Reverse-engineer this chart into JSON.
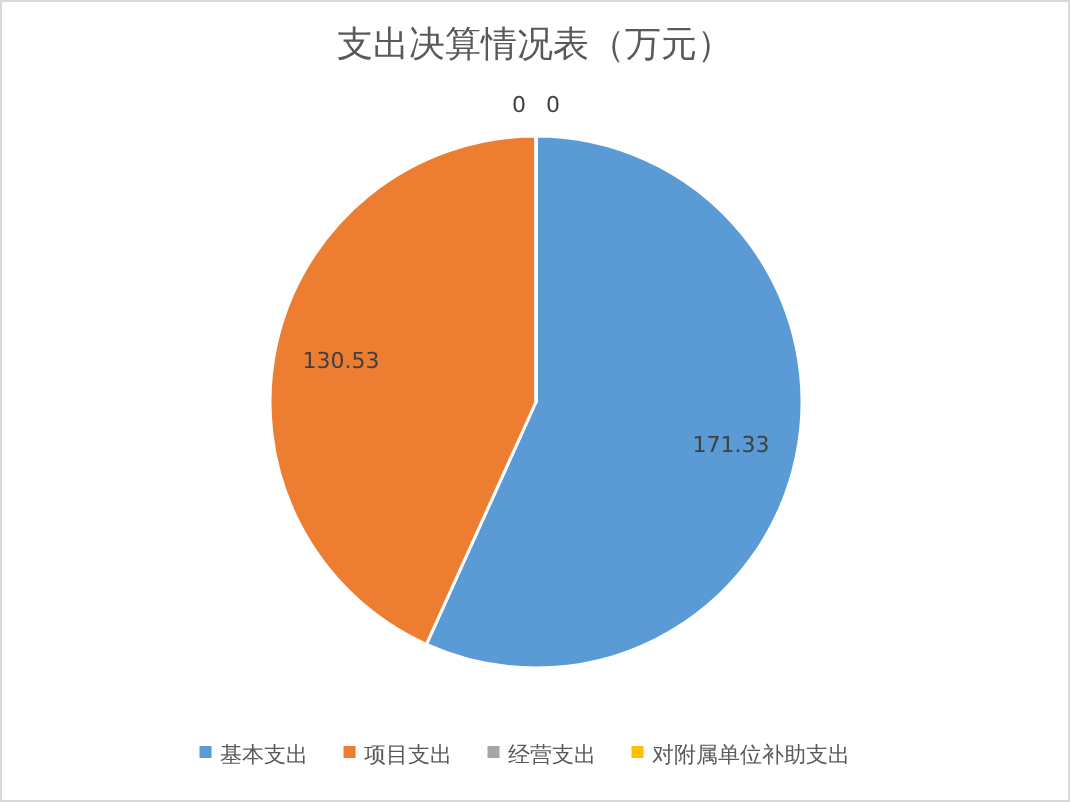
{
  "chart_data": {
    "type": "pie",
    "title": "支出决算情况表（万元）",
    "categories": [
      "基本支出",
      "项目支出",
      "经营支出",
      "对附属单位补助支出"
    ],
    "values": [
      171.33,
      130.53,
      0,
      0
    ],
    "colors": [
      "#5b9bd5",
      "#ed7d31",
      "#a5a5a5",
      "#ffc000"
    ],
    "value_labels": [
      "171.33",
      "130.53",
      "0",
      "0"
    ],
    "legend": "bottom"
  }
}
